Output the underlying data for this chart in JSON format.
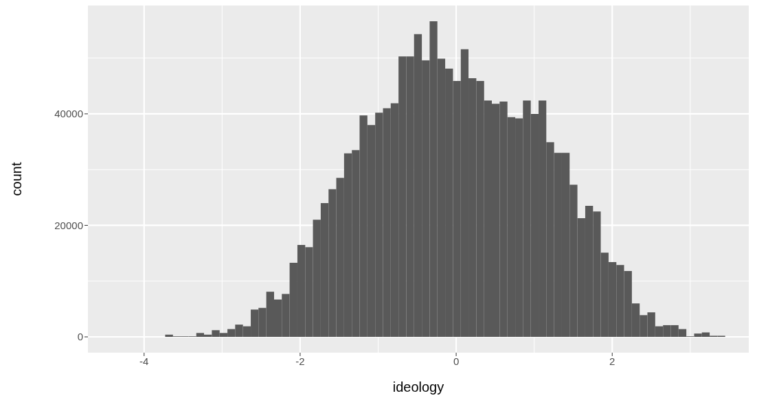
{
  "chart_data": {
    "type": "histogram",
    "xlabel": "ideology",
    "ylabel": "count",
    "bins": [
      -3.73,
      -3.63,
      -3.531,
      -3.431,
      -3.331,
      -3.232,
      -3.132,
      -3.032,
      -2.932,
      -2.833,
      -2.733,
      -2.633,
      -2.534,
      -2.434,
      -2.334,
      -2.235,
      -2.135,
      -2.035,
      -1.935,
      -1.836,
      -1.736,
      -1.636,
      -1.537,
      -1.437,
      -1.337,
      -1.238,
      -1.138,
      -1.038,
      -0.938,
      -0.839,
      -0.739,
      -0.639,
      -0.54,
      -0.44,
      -0.34,
      -0.241,
      -0.141,
      -0.041,
      0.059,
      0.158,
      0.258,
      0.358,
      0.457,
      0.557,
      0.657,
      0.757,
      0.856,
      0.956,
      1.056,
      1.155,
      1.255,
      1.355,
      1.454,
      1.554,
      1.654,
      1.754,
      1.853,
      1.953,
      2.053,
      2.152,
      2.252,
      2.352,
      2.451,
      2.551,
      2.651,
      2.75,
      2.85,
      2.95,
      3.05,
      3.149,
      3.249,
      3.349,
      3.448
    ],
    "values": [
      400,
      100,
      100,
      100,
      700,
      400,
      1200,
      700,
      1400,
      2200,
      1900,
      4900,
      5200,
      8100,
      6700,
      7700,
      13300,
      16500,
      16100,
      21000,
      24000,
      26500,
      28500,
      32900,
      33500,
      39700,
      38000,
      40200,
      41000,
      41900,
      50300,
      50300,
      54300,
      49600,
      56600,
      49900,
      48100,
      45900,
      51600,
      46400,
      45900,
      42400,
      41800,
      42200,
      39400,
      39200,
      42400,
      40000,
      42400,
      34900,
      33000,
      33000,
      27300,
      21300,
      23500,
      22500,
      15100,
      13400,
      12900,
      11800,
      6000,
      3900,
      4400,
      1900,
      2100,
      2100,
      1400,
      100,
      600,
      800,
      200,
      200
    ],
    "color": "#595959",
    "xlim": [
      -4.72,
      3.75
    ],
    "xticks": [
      -4,
      -2,
      0,
      2
    ],
    "ylim": [
      -2830,
      59430
    ],
    "yticks": [
      0,
      20000,
      40000
    ],
    "grid": true
  }
}
